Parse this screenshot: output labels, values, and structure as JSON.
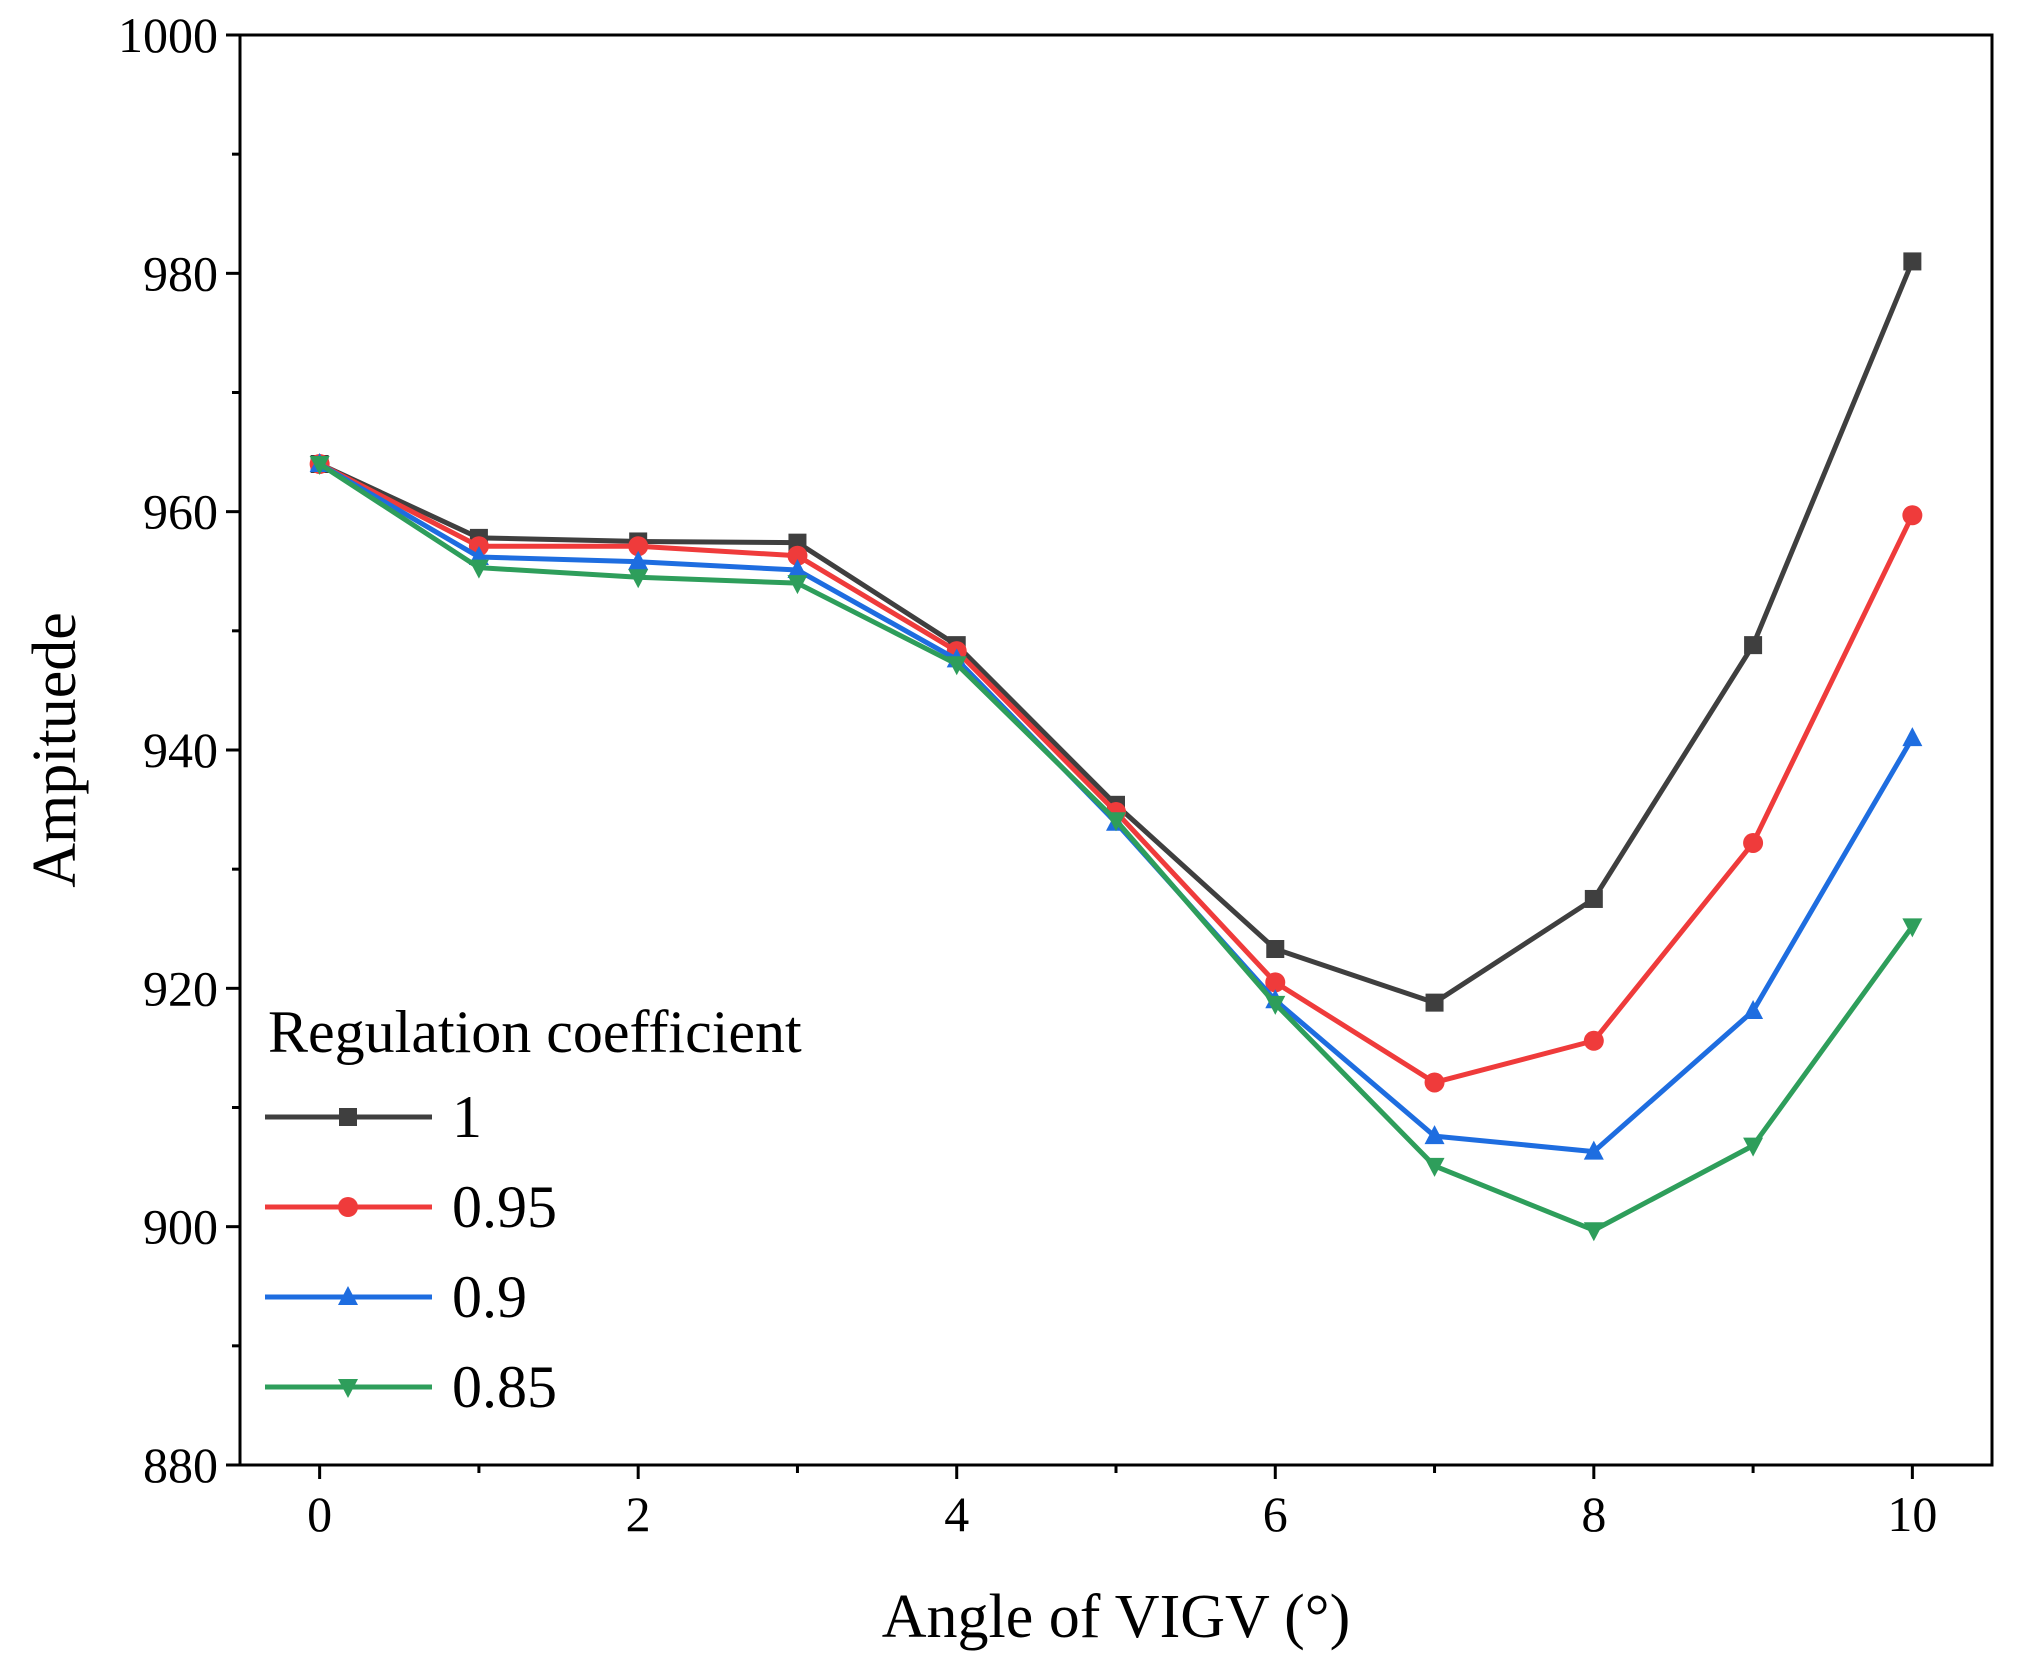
{
  "chart_data": {
    "type": "line",
    "xlabel": "Angle of VIGV (°)",
    "ylabel": "Ampituede",
    "xlim": [
      -0.5,
      10.5
    ],
    "ylim": [
      880,
      1000
    ],
    "xticks": [
      0,
      2,
      4,
      6,
      8,
      10
    ],
    "yticks": [
      880,
      900,
      920,
      940,
      960,
      980,
      1000
    ],
    "x": [
      0,
      1,
      2,
      3,
      4,
      5,
      6,
      7,
      8,
      9,
      10
    ],
    "legend": {
      "title": "Regulation coefficient",
      "position": "bottom-left"
    },
    "series": [
      {
        "name": "1",
        "color": "#3f3f3f",
        "marker": "square",
        "values": [
          964.0,
          957.8,
          957.5,
          957.4,
          948.8,
          935.4,
          923.3,
          918.8,
          927.5,
          948.8,
          981.0
        ]
      },
      {
        "name": "0.95",
        "color": "#ef3b3b",
        "marker": "circle",
        "values": [
          964.0,
          957.1,
          957.1,
          956.3,
          948.3,
          934.8,
          920.5,
          912.1,
          915.6,
          932.2,
          959.7
        ]
      },
      {
        "name": "0.9",
        "color": "#1e6de0",
        "marker": "triangle-up",
        "values": [
          964.0,
          956.2,
          955.8,
          955.1,
          947.6,
          933.9,
          919.0,
          907.6,
          906.3,
          918.1,
          941.0
        ]
      },
      {
        "name": "0.85",
        "color": "#2e9e5b",
        "marker": "triangle-down",
        "values": [
          964.0,
          955.3,
          954.5,
          954.0,
          947.2,
          934.1,
          918.7,
          905.1,
          899.7,
          906.8,
          925.2
        ]
      }
    ]
  }
}
